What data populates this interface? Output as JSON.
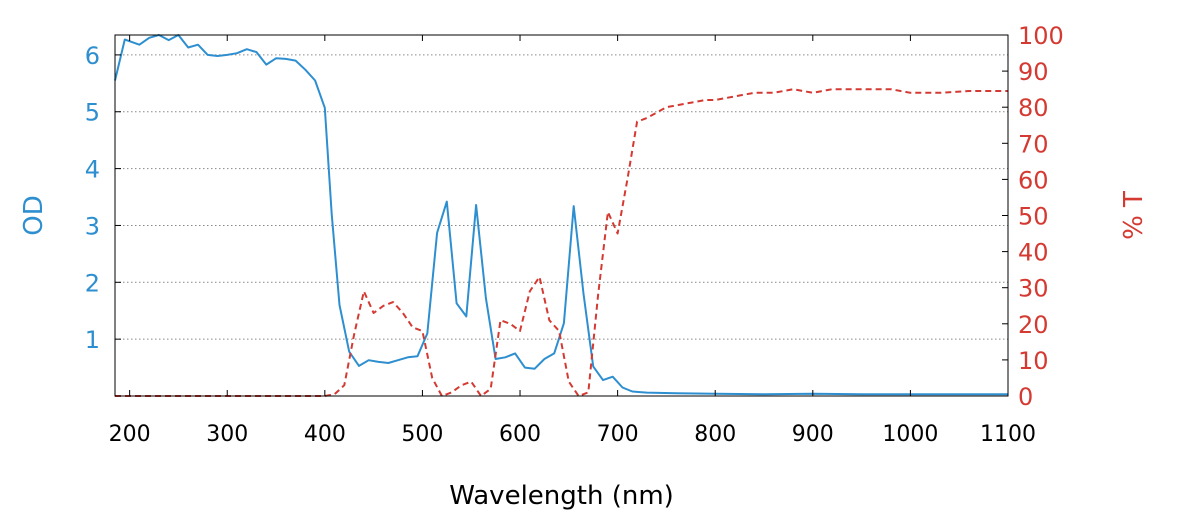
{
  "colors": {
    "od_series": "#2e8fd0",
    "t_series": "#d43a32",
    "grid": "#888888",
    "frame": "#000000"
  },
  "chart_data": {
    "type": "line",
    "xlabel": "Wavelength (nm)",
    "ylabel_left": "OD",
    "ylabel_right": "% T",
    "xlim": [
      185,
      1100
    ],
    "ylim_left": [
      0,
      6.35
    ],
    "ylim_right": [
      0,
      100
    ],
    "x_ticks": [
      200,
      300,
      400,
      500,
      600,
      700,
      800,
      900,
      1000,
      1100
    ],
    "left_ticks": [
      1,
      2,
      3,
      4,
      5,
      6
    ],
    "right_ticks": [
      0,
      10,
      20,
      30,
      40,
      50,
      60,
      70,
      80,
      90,
      100
    ],
    "grid": "horizontal dotted at left-axis ticks",
    "series": [
      {
        "axis": "left",
        "style": "solid",
        "x": [
          185,
          195,
          210,
          220,
          230,
          240,
          250,
          260,
          270,
          280,
          290,
          300,
          310,
          320,
          330,
          340,
          350,
          360,
          370,
          380,
          390,
          400,
          407,
          415,
          425,
          435,
          445,
          455,
          465,
          475,
          485,
          495,
          505,
          515,
          525,
          535,
          545,
          555,
          565,
          575,
          585,
          595,
          605,
          615,
          625,
          635,
          645,
          655,
          665,
          675,
          685,
          695,
          705,
          715,
          730,
          760,
          800,
          850,
          900,
          950,
          1000,
          1050,
          1100
        ],
        "values": [
          5.55,
          6.27,
          6.18,
          6.3,
          6.35,
          6.26,
          6.35,
          6.13,
          6.18,
          6.0,
          5.98,
          6.0,
          6.03,
          6.1,
          6.05,
          5.83,
          5.94,
          5.93,
          5.9,
          5.74,
          5.55,
          5.07,
          3.2,
          1.6,
          0.78,
          0.53,
          0.63,
          0.6,
          0.58,
          0.63,
          0.68,
          0.7,
          1.1,
          2.87,
          3.42,
          1.63,
          1.4,
          3.36,
          1.72,
          0.65,
          0.68,
          0.75,
          0.5,
          0.48,
          0.65,
          0.75,
          1.28,
          3.34,
          1.8,
          0.52,
          0.28,
          0.34,
          0.15,
          0.08,
          0.06,
          0.05,
          0.04,
          0.03,
          0.04,
          0.03,
          0.03,
          0.03,
          0.03
        ]
      },
      {
        "axis": "right",
        "style": "dashed",
        "x": [
          185,
          200,
          250,
          300,
          350,
          400,
          410,
          420,
          430,
          440,
          450,
          460,
          470,
          480,
          490,
          500,
          510,
          520,
          530,
          540,
          550,
          560,
          570,
          580,
          590,
          600,
          610,
          620,
          630,
          640,
          650,
          660,
          670,
          680,
          690,
          700,
          710,
          720,
          730,
          750,
          770,
          790,
          800,
          820,
          840,
          860,
          880,
          900,
          920,
          950,
          980,
          1000,
          1030,
          1060,
          1100
        ],
        "values": [
          0,
          0,
          0,
          0,
          0,
          0,
          0.5,
          3,
          17,
          29,
          23,
          25,
          26,
          23,
          19,
          18,
          5,
          0,
          1,
          3,
          4,
          0,
          2,
          21,
          20,
          18,
          29,
          33,
          21,
          18,
          4,
          0,
          1,
          28,
          51,
          45,
          60,
          76,
          77,
          80,
          81,
          82,
          82,
          83,
          84,
          84,
          85,
          84,
          85,
          85,
          85,
          84,
          84,
          84.5,
          84.5
        ]
      }
    ]
  }
}
